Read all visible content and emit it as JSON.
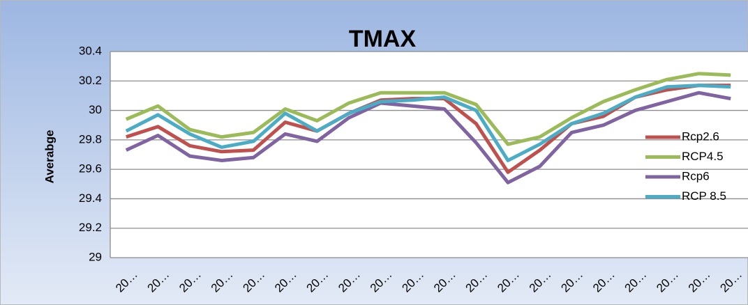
{
  "chart_data": {
    "type": "line",
    "title": "TMAX",
    "y_label": "Averabge",
    "categories": [
      "20…",
      "20…",
      "20…",
      "20…",
      "20…",
      "20…",
      "20…",
      "20…",
      "20…",
      "20…",
      "20…",
      "20…",
      "20…",
      "20…",
      "20…",
      "20…",
      "20…",
      "20…",
      "20…",
      "20…"
    ],
    "series": [
      {
        "name": "Rcp2.6",
        "color": "#c0504d",
        "values": [
          29.82,
          29.89,
          29.76,
          29.72,
          29.73,
          29.92,
          29.86,
          29.98,
          30.07,
          30.08,
          30.08,
          29.91,
          29.58,
          29.73,
          29.91,
          29.96,
          30.09,
          30.14,
          30.17,
          30.17
        ]
      },
      {
        "name": "RCP4.5",
        "color": "#9bbb59",
        "values": [
          29.94,
          30.03,
          29.87,
          29.82,
          29.85,
          30.01,
          29.93,
          30.05,
          30.12,
          30.12,
          30.12,
          30.04,
          29.77,
          29.82,
          29.95,
          30.06,
          30.14,
          30.21,
          30.25,
          30.24
        ]
      },
      {
        "name": "Rcp6",
        "color": "#8064a2",
        "values": [
          29.73,
          29.83,
          29.69,
          29.66,
          29.68,
          29.84,
          29.79,
          29.95,
          30.05,
          30.03,
          30.01,
          29.78,
          29.51,
          29.62,
          29.85,
          29.9,
          30.0,
          30.06,
          30.12,
          30.08
        ]
      },
      {
        "name": "RCP 8.5",
        "color": "#4bacc6",
        "values": [
          29.86,
          29.97,
          29.84,
          29.75,
          29.79,
          29.98,
          29.86,
          29.98,
          30.06,
          30.07,
          30.09,
          30.0,
          29.66,
          29.77,
          29.91,
          29.98,
          30.09,
          30.16,
          30.17,
          30.16
        ]
      }
    ],
    "ylim": [
      29,
      30.4
    ],
    "yticks": [
      29,
      29.2,
      29.4,
      29.6,
      29.8,
      30,
      30.2,
      30.4
    ],
    "grid": true,
    "legend": "right"
  }
}
